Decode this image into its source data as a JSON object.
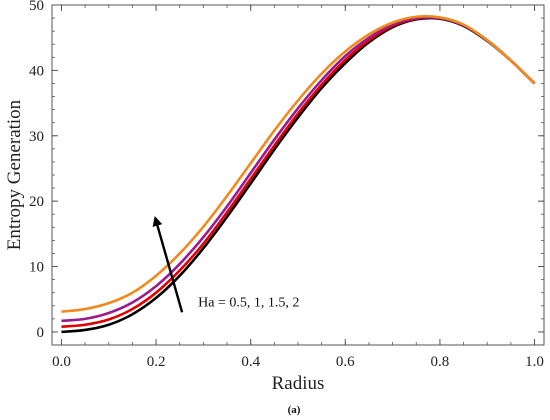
{
  "chart_data": {
    "type": "line",
    "title": "",
    "xlabel": "Radius",
    "ylabel": "Entropy Generation",
    "xlim": [
      -0.02,
      1.02
    ],
    "ylim": [
      -2,
      50
    ],
    "xticks": [
      0.0,
      0.2,
      0.4,
      0.6,
      0.8,
      1.0
    ],
    "xtick_labels": [
      "0.0",
      "0.2",
      "0.4",
      "0.6",
      "0.8",
      "1.0"
    ],
    "yticks": [
      0,
      10,
      20,
      30,
      40,
      50
    ],
    "ytick_labels": [
      "0",
      "10",
      "20",
      "30",
      "40",
      "50"
    ],
    "grid": false,
    "x": [
      0.0,
      0.05,
      0.1,
      0.15,
      0.2,
      0.25,
      0.3,
      0.35,
      0.4,
      0.45,
      0.5,
      0.55,
      0.6,
      0.65,
      0.7,
      0.75,
      0.8,
      0.85,
      0.9,
      0.95,
      1.0
    ],
    "series": [
      {
        "values": [
          0.0,
          0.3,
          1.1,
          2.7,
          5.2,
          8.6,
          12.8,
          17.6,
          22.7,
          27.9,
          32.8,
          37.3,
          41.1,
          44.3,
          46.6,
          47.8,
          47.9,
          46.8,
          44.5,
          41.5,
          38.0
        ],
        "color": "#000000"
      },
      {
        "values": [
          0.8,
          1.1,
          1.9,
          3.5,
          6.0,
          9.4,
          13.5,
          18.3,
          23.4,
          28.5,
          33.4,
          37.8,
          41.6,
          44.6,
          46.8,
          47.9,
          48.0,
          46.9,
          44.6,
          41.5,
          38.0
        ],
        "color": "#e00000"
      },
      {
        "values": [
          1.7,
          2.0,
          2.9,
          4.5,
          7.0,
          10.4,
          14.5,
          19.2,
          24.3,
          29.4,
          34.2,
          38.5,
          42.2,
          45.0,
          47.0,
          48.0,
          48.0,
          46.9,
          44.6,
          41.5,
          38.0
        ],
        "color": "#9b1b8e"
      },
      {
        "values": [
          3.1,
          3.5,
          4.4,
          6.0,
          8.6,
          12.0,
          16.1,
          20.8,
          25.8,
          30.8,
          35.4,
          39.5,
          42.9,
          45.5,
          47.3,
          48.2,
          48.1,
          47.0,
          44.6,
          41.5,
          38.0
        ],
        "color": "#f08a1a"
      }
    ],
    "annotation": {
      "text": "Ha = 0.5, 1, 1.5, 2",
      "arrow_from": [
        0.255,
        3.0
      ],
      "arrow_to": [
        0.2,
        17.0
      ]
    },
    "panel_label": "(a)"
  }
}
